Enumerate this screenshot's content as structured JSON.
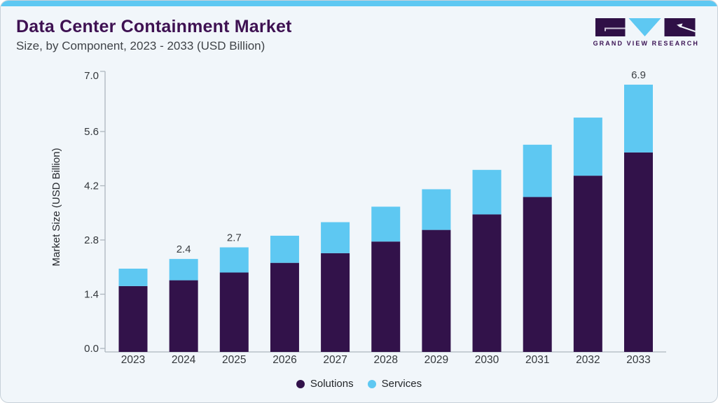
{
  "header": {
    "title": "Data Center Containment Market",
    "subtitle": "Size, by Component, 2023 - 2033 (USD Billion)"
  },
  "logo": {
    "text": "GRAND VIEW RESEARCH"
  },
  "colors": {
    "accent_strip": "#5EC8F2",
    "card_background": "#F1F6FA",
    "card_border": "#C7D1D9",
    "title_text": "#3E1152",
    "subtitle_text": "#3F4348",
    "axis": "#ADB6BE",
    "tick_text": "#33373B",
    "solutions": "#32124A",
    "services": "#5EC8F2",
    "logo_purple": "#2F1046",
    "logo_blue": "#5EC8F2"
  },
  "chart_data": {
    "type": "bar",
    "stacked": true,
    "title": "Data Center Containment Market Size, by Component, 2023 - 2033 (USD Billion)",
    "ylabel": "Market Size (USD Billion)",
    "xlabel": "",
    "categories": [
      "2023",
      "2024",
      "2025",
      "2026",
      "2027",
      "2028",
      "2029",
      "2030",
      "2031",
      "2032",
      "2033"
    ],
    "series": [
      {
        "name": "Solutions",
        "color": "#32124A",
        "values": [
          1.7,
          1.85,
          2.05,
          2.3,
          2.55,
          2.85,
          3.15,
          3.55,
          4.0,
          4.55,
          5.15
        ]
      },
      {
        "name": "Services",
        "color": "#5EC8F2",
        "values": [
          0.45,
          0.55,
          0.65,
          0.7,
          0.8,
          0.9,
          1.05,
          1.15,
          1.35,
          1.5,
          1.75
        ]
      }
    ],
    "totals": [
      2.15,
      2.4,
      2.7,
      3.0,
      3.35,
      3.75,
      4.2,
      4.7,
      5.35,
      6.05,
      6.9
    ],
    "data_labels": {
      "2024": "2.4",
      "2025": "2.7",
      "2033": "6.9"
    },
    "yticks": [
      0.0,
      1.4,
      2.8,
      4.2,
      5.6,
      7.0
    ],
    "ylim": [
      0.0,
      7.0
    ],
    "grid": false,
    "legend_position": "bottom"
  },
  "legend": {
    "items": [
      {
        "label": "Solutions",
        "color": "#32124A"
      },
      {
        "label": "Services",
        "color": "#5EC8F2"
      }
    ]
  }
}
